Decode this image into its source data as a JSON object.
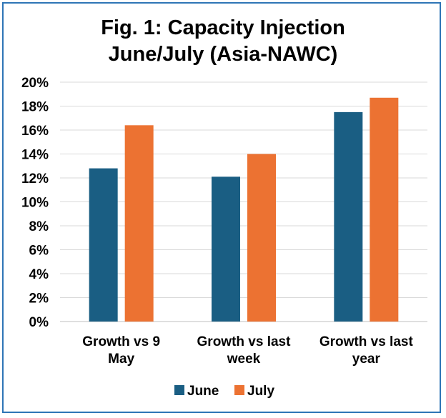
{
  "chart_data": {
    "type": "bar",
    "title_lines": [
      "Fig. 1: Capacity Injection",
      "June/July (Asia-NAWC)"
    ],
    "categories": [
      [
        "Growth vs 9",
        "May"
      ],
      [
        "Growth vs last",
        "week"
      ],
      [
        "Growth vs last",
        "year"
      ]
    ],
    "series": [
      {
        "name": "June",
        "color": "#1a5e83",
        "values": [
          12.8,
          12.1,
          17.5
        ]
      },
      {
        "name": "July",
        "color": "#ec7232",
        "values": [
          16.4,
          14.0,
          18.7
        ]
      }
    ],
    "ylim": [
      0,
      20
    ],
    "yticks": [
      "0%",
      "2%",
      "4%",
      "6%",
      "8%",
      "10%",
      "12%",
      "14%",
      "16%",
      "18%",
      "20%"
    ],
    "ytick_values": [
      0,
      2,
      4,
      6,
      8,
      10,
      12,
      14,
      16,
      18,
      20
    ],
    "grid": true,
    "legend_position": "bottom",
    "frame_color": "#2e75b6",
    "grid_color": "#d9d9d9"
  }
}
